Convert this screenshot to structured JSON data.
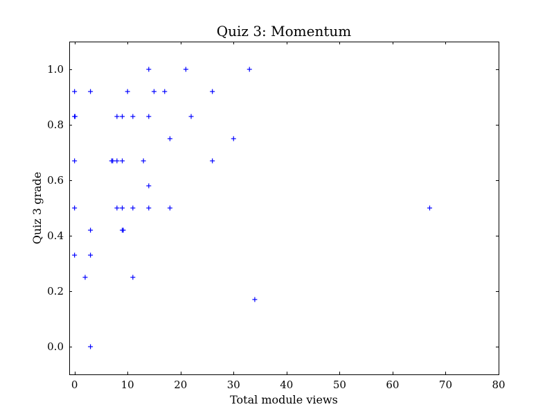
{
  "chart_data": {
    "type": "scatter",
    "title": "Quiz 3: Momentum",
    "xlabel": "Total module views",
    "ylabel": "Quiz 3 grade",
    "xlim": [
      -1,
      80
    ],
    "ylim": [
      -0.1,
      1.1
    ],
    "xticks": [
      0,
      10,
      20,
      30,
      40,
      50,
      60,
      70,
      80
    ],
    "xtick_labels": [
      "0",
      "10",
      "20",
      "30",
      "40",
      "50",
      "60",
      "70",
      "80"
    ],
    "yticks": [
      0.0,
      0.2,
      0.4,
      0.6,
      0.8,
      1.0
    ],
    "ytick_labels": [
      "0.0",
      "0.2",
      "0.4",
      "0.6",
      "0.8",
      "1.0"
    ],
    "marker": "plus",
    "color": "#0000ff",
    "grid": false,
    "points": [
      {
        "x": 0,
        "y": 0.92
      },
      {
        "x": 0,
        "y": 0.83
      },
      {
        "x": 0.1,
        "y": 0.83
      },
      {
        "x": 0,
        "y": 0.67
      },
      {
        "x": 0,
        "y": 0.5
      },
      {
        "x": 0,
        "y": 0.33
      },
      {
        "x": 2,
        "y": 0.25
      },
      {
        "x": 3,
        "y": 0.92
      },
      {
        "x": 3,
        "y": 0.42
      },
      {
        "x": 3,
        "y": 0.33
      },
      {
        "x": 3,
        "y": 0.0
      },
      {
        "x": 7,
        "y": 0.67
      },
      {
        "x": 7.2,
        "y": 0.67
      },
      {
        "x": 8,
        "y": 0.83
      },
      {
        "x": 8,
        "y": 0.67
      },
      {
        "x": 8,
        "y": 0.5
      },
      {
        "x": 9,
        "y": 0.83
      },
      {
        "x": 9,
        "y": 0.67
      },
      {
        "x": 9,
        "y": 0.5
      },
      {
        "x": 9,
        "y": 0.42
      },
      {
        "x": 9.2,
        "y": 0.42
      },
      {
        "x": 10,
        "y": 0.92
      },
      {
        "x": 11,
        "y": 0.83
      },
      {
        "x": 11,
        "y": 0.5
      },
      {
        "x": 11,
        "y": 0.25
      },
      {
        "x": 13,
        "y": 0.67
      },
      {
        "x": 14,
        "y": 1.0
      },
      {
        "x": 14,
        "y": 0.83
      },
      {
        "x": 14,
        "y": 0.58
      },
      {
        "x": 14,
        "y": 0.5
      },
      {
        "x": 15,
        "y": 0.92
      },
      {
        "x": 17,
        "y": 0.92
      },
      {
        "x": 18,
        "y": 0.75
      },
      {
        "x": 18,
        "y": 0.5
      },
      {
        "x": 21,
        "y": 1.0
      },
      {
        "x": 22,
        "y": 0.83
      },
      {
        "x": 26,
        "y": 0.92
      },
      {
        "x": 26,
        "y": 0.67
      },
      {
        "x": 30,
        "y": 0.75
      },
      {
        "x": 33,
        "y": 1.0
      },
      {
        "x": 34,
        "y": 0.17
      },
      {
        "x": 67,
        "y": 0.5
      }
    ]
  }
}
